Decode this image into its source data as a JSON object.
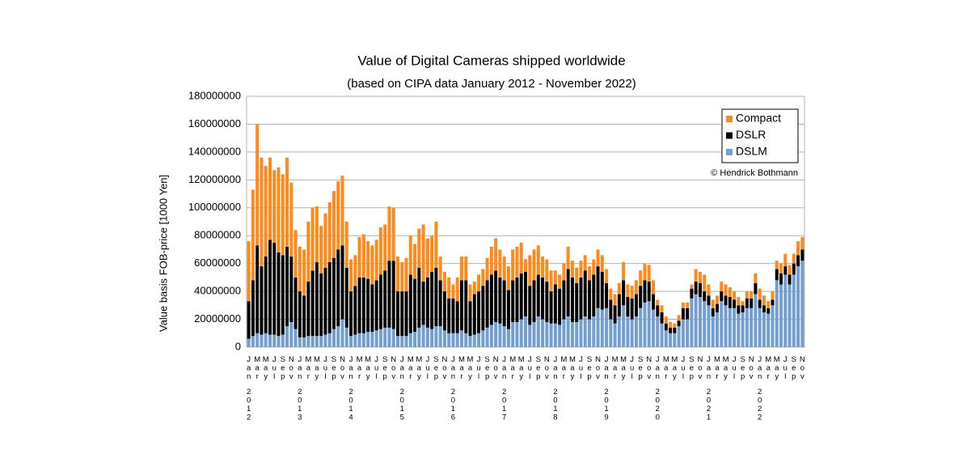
{
  "chart_data": {
    "type": "stacked_bar",
    "title": "Value of Digital Cameras shipped worldwide",
    "subtitle": "(based on CIPA data January 2012 - November 2022)",
    "y_label": "Value basis FOB-price [1000 Yen]",
    "annotation": "© Hendrick Bothmann",
    "legend_position": "upper right",
    "grid": true,
    "ylim": [
      0,
      180000000
    ],
    "yticks": [
      0,
      20000000,
      40000000,
      60000000,
      80000000,
      100000000,
      120000000,
      140000000,
      160000000,
      180000000
    ],
    "years": [
      "2012",
      "2013",
      "2014",
      "2015",
      "2016",
      "2017",
      "2018",
      "2019",
      "2020",
      "2021",
      "2022"
    ],
    "categories": [
      "Jan",
      null,
      "Mar",
      null,
      "May",
      null,
      "Jul",
      null,
      "Sep",
      null,
      "Nov",
      null,
      "Jan",
      null,
      "Mar",
      null,
      "May",
      null,
      "Jul",
      null,
      "Sep",
      null,
      "Nov",
      null,
      "Jan",
      null,
      "Mar",
      null,
      "May",
      null,
      "Jul",
      null,
      "Sep",
      null,
      "Nov",
      null,
      "Jan",
      null,
      "Mar",
      null,
      "May",
      null,
      "Jul",
      null,
      "Sep",
      null,
      "Nov",
      null,
      "Jan",
      null,
      "Mar",
      null,
      "May",
      null,
      "Jul",
      null,
      "Sep",
      null,
      "Nov",
      null,
      "Jan",
      null,
      "Mar",
      null,
      "May",
      null,
      "Jul",
      null,
      "Sep",
      null,
      "Nov",
      null,
      "Jan",
      null,
      "Mar",
      null,
      "May",
      null,
      "Jul",
      null,
      "Sep",
      null,
      "Nov",
      null,
      "Jan",
      null,
      "Mar",
      null,
      "May",
      null,
      "Jul",
      null,
      "Sep",
      null,
      "Nov",
      null,
      "Jan",
      null,
      "Mar",
      null,
      "May",
      null,
      "Jul",
      null,
      "Sep",
      null,
      "Nov",
      null,
      "Jan",
      null,
      "Mar",
      null,
      "May",
      null,
      "Jul",
      null,
      "Sep",
      null,
      "Nov",
      null,
      "Jan",
      null,
      "Mar",
      null,
      "May",
      null,
      "Jul",
      null,
      "Sep",
      null,
      "Nov"
    ],
    "series": [
      {
        "name": "Compact",
        "color": "#ff8a1c",
        "values": [
          43000000.0,
          65000000.0,
          87000000.0,
          78000000.0,
          65000000.0,
          59000000.0,
          52000000.0,
          61000000.0,
          58000000.0,
          64000000.0,
          53000000.0,
          34000000.0,
          32000000.0,
          33000000.0,
          43000000.0,
          45000000.0,
          40000000.0,
          34000000.0,
          39000000.0,
          43000000.0,
          48000000.0,
          49000000.0,
          50000000.0,
          33000000.0,
          23000000.0,
          22000000.0,
          29000000.0,
          31000000.0,
          27000000.0,
          28000000.0,
          29000000.0,
          34000000.0,
          33000000.0,
          39000000.0,
          38000000.0,
          25000000.0,
          21000000.0,
          24000000.0,
          28000000.0,
          25000000.0,
          28000000.0,
          41000000.0,
          28000000.0,
          26000000.0,
          33000000.0,
          17000000.0,
          14000000.0,
          15000000.0,
          10000000.0,
          17000000.0,
          17000000.0,
          17000000.0,
          12000000.0,
          9000000.0,
          12000000.0,
          12000000.0,
          16000000.0,
          20000000.0,
          23000000.0,
          20000000.0,
          17000000.0,
          17000000.0,
          22000000.0,
          22000000.0,
          22000000.0,
          9000000.0,
          22000000.0,
          22000000.0,
          21000000.0,
          15000000.0,
          16000000.0,
          15000000.0,
          10000000.0,
          10000000.0,
          12000000.0,
          16000000.0,
          12000000.0,
          11000000.0,
          12000000.0,
          11000000.0,
          10000000.0,
          11000000.0,
          12000000.0,
          12000000.0,
          10000000.0,
          8000000.0,
          8000000.0,
          8000000.0,
          13000000.0,
          9000000.0,
          9000000.0,
          10000000.0,
          11000000.0,
          12000000.0,
          12000000.0,
          10000000.0,
          4000000.0,
          5000000.0,
          5000000.0,
          4000000.0,
          3000000.0,
          4000000.0,
          4000000.0,
          4000000.0,
          3000000.0,
          9000000.0,
          8000000.0,
          12000000.0,
          8000000.0,
          6000000.0,
          6000000.0,
          7000000.0,
          8000000.0,
          7000000.0,
          6000000.0,
          6000000.0,
          3000000.0,
          5000000.0,
          5000000.0,
          7000000.0,
          8000000.0,
          7000000.0,
          5000000.0,
          6000000.0,
          6000000.0,
          7000000.0,
          9000000.0,
          7000000.0,
          7000000.0,
          10000000.0,
          9000000.0
        ]
      },
      {
        "name": "DSLR",
        "color": "#000000",
        "values": [
          27000000.0,
          40000000.0,
          63000000.0,
          49000000.0,
          55000000.0,
          68000000.0,
          66000000.0,
          60000000.0,
          57000000.0,
          57000000.0,
          47000000.0,
          37000000.0,
          33000000.0,
          30000000.0,
          39000000.0,
          47000000.0,
          53000000.0,
          45000000.0,
          48000000.0,
          51000000.0,
          51000000.0,
          55000000.0,
          53000000.0,
          43000000.0,
          32000000.0,
          35000000.0,
          40000000.0,
          40000000.0,
          38000000.0,
          34000000.0,
          36000000.0,
          39000000.0,
          41000000.0,
          48000000.0,
          49000000.0,
          32000000.0,
          32000000.0,
          32000000.0,
          42000000.0,
          38000000.0,
          43000000.0,
          31000000.0,
          36000000.0,
          41000000.0,
          42000000.0,
          33000000.0,
          28000000.0,
          25000000.0,
          25000000.0,
          23000000.0,
          36000000.0,
          38000000.0,
          25000000.0,
          29000000.0,
          30000000.0,
          32000000.0,
          34000000.0,
          36000000.0,
          37000000.0,
          33000000.0,
          33000000.0,
          28000000.0,
          30000000.0,
          32000000.0,
          33000000.0,
          32000000.0,
          28000000.0,
          30000000.0,
          30000000.0,
          30000000.0,
          29000000.0,
          23000000.0,
          28000000.0,
          26000000.0,
          28000000.0,
          34000000.0,
          32000000.0,
          28000000.0,
          30000000.0,
          33000000.0,
          28000000.0,
          30000000.0,
          30000000.0,
          27000000.0,
          18000000.0,
          14000000.0,
          13000000.0,
          16000000.0,
          18000000.0,
          14000000.0,
          15000000.0,
          16000000.0,
          16000000.0,
          16000000.0,
          14000000.0,
          11000000.0,
          8000000.0,
          8000000.0,
          5000000.0,
          4000000.0,
          4000000.0,
          4000000.0,
          8000000.0,
          8000000.0,
          7000000.0,
          9000000.0,
          10000000.0,
          7000000.0,
          7000000.0,
          6000000.0,
          6000000.0,
          7000000.0,
          7000000.0,
          8000000.0,
          6000000.0,
          6000000.0,
          5000000.0,
          7000000.0,
          7000000.0,
          8000000.0,
          6000000.0,
          5000000.0,
          4000000.0,
          4000000.0,
          8000000.0,
          8000000.0,
          6000000.0,
          7000000.0,
          8000000.0,
          8000000.0,
          8000000.0
        ]
      },
      {
        "name": "DSLM",
        "color": "#729fcf",
        "values": [
          6000000.0,
          8000000.0,
          10000000.0,
          9000000.0,
          10000000.0,
          9000000.0,
          9000000.0,
          8000000.0,
          9000000.0,
          15000000.0,
          18000000.0,
          13000000.0,
          7000000.0,
          7000000.0,
          8000000.0,
          8000000.0,
          8000000.0,
          8000000.0,
          9000000.0,
          10000000.0,
          13000000.0,
          15000000.0,
          20000000.0,
          14000000.0,
          8000000.0,
          9000000.0,
          10000000.0,
          10000000.0,
          11000000.0,
          11000000.0,
          12000000.0,
          13000000.0,
          14000000.0,
          14000000.0,
          13000000.0,
          8000000.0,
          8000000.0,
          8000000.0,
          10000000.0,
          11000000.0,
          14000000.0,
          16000000.0,
          14000000.0,
          13000000.0,
          15000000.0,
          15000000.0,
          12000000.0,
          10000000.0,
          10000000.0,
          10000000.0,
          12000000.0,
          10000000.0,
          8000000.0,
          9000000.0,
          10000000.0,
          12000000.0,
          14000000.0,
          16000000.0,
          18000000.0,
          17000000.0,
          15000000.0,
          13000000.0,
          18000000.0,
          18000000.0,
          20000000.0,
          22000000.0,
          16000000.0,
          18000000.0,
          22000000.0,
          20000000.0,
          18000000.0,
          17000000.0,
          17000000.0,
          16000000.0,
          20000000.0,
          22000000.0,
          18000000.0,
          18000000.0,
          20000000.0,
          22000000.0,
          20000000.0,
          22000000.0,
          28000000.0,
          27000000.0,
          28000000.0,
          20000000.0,
          17000000.0,
          22000000.0,
          30000000.0,
          22000000.0,
          20000000.0,
          22000000.0,
          28000000.0,
          32000000.0,
          33000000.0,
          27000000.0,
          22000000.0,
          17000000.0,
          12000000.0,
          10000000.0,
          10000000.0,
          15000000.0,
          20000000.0,
          20000000.0,
          35000000.0,
          38000000.0,
          36000000.0,
          33000000.0,
          30000000.0,
          22000000.0,
          25000000.0,
          33000000.0,
          30000000.0,
          28000000.0,
          28000000.0,
          24000000.0,
          25000000.0,
          28000000.0,
          28000000.0,
          38000000.0,
          28000000.0,
          25000000.0,
          24000000.0,
          30000000.0,
          48000000.0,
          45000000.0,
          52000000.0,
          45000000.0,
          52000000.0,
          58000000.0,
          62000000.0
        ]
      }
    ]
  }
}
